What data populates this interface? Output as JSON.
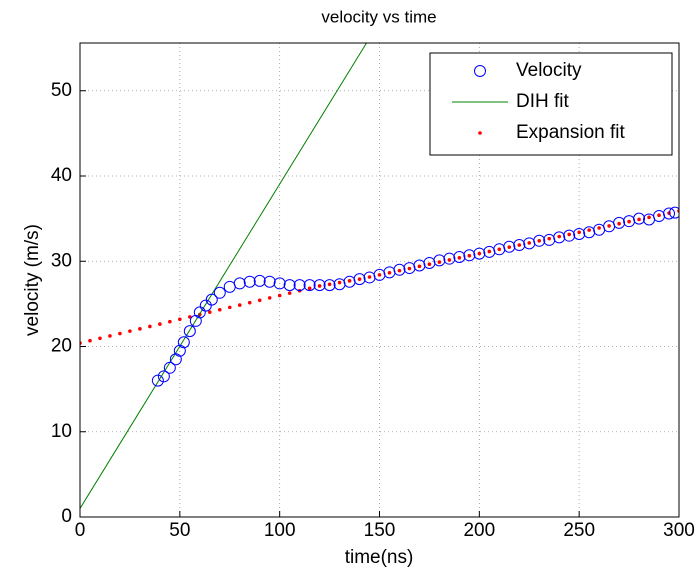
{
  "chart_data": {
    "type": "scatter",
    "title": "velocity vs time",
    "x_label": "time(ns)",
    "y_label": "velocity (m/s)",
    "xlim": [
      0,
      300
    ],
    "ylim": [
      0,
      55.6
    ],
    "xticks": [
      0,
      50,
      100,
      150,
      200,
      250,
      300
    ],
    "yticks": [
      0,
      10,
      20,
      30,
      40,
      50
    ],
    "grid": true,
    "legend": "top-right",
    "series": [
      {
        "name": "Velocity",
        "color": "#0000ff",
        "style": "circle",
        "x": [
          39,
          42,
          45,
          48,
          50,
          52,
          55,
          58,
          60,
          63,
          66,
          70,
          75,
          80,
          85,
          90,
          95,
          100,
          105,
          110,
          115,
          120,
          125,
          130,
          135,
          140,
          145,
          150,
          155,
          160,
          165,
          170,
          175,
          180,
          185,
          190,
          195,
          200,
          205,
          210,
          215,
          220,
          225,
          230,
          235,
          240,
          245,
          250,
          255,
          260,
          265,
          270,
          275,
          280,
          285,
          290,
          295,
          298
        ],
        "values": [
          16,
          16.5,
          17.5,
          18.5,
          19.5,
          20.5,
          21.8,
          23,
          24,
          24.8,
          25.5,
          26.3,
          27,
          27.4,
          27.6,
          27.7,
          27.6,
          27.4,
          27.2,
          27.2,
          27.2,
          27.2,
          27.2,
          27.3,
          27.6,
          27.9,
          28.1,
          28.4,
          28.7,
          29,
          29.2,
          29.5,
          29.8,
          30.1,
          30.3,
          30.5,
          30.7,
          30.9,
          31.1,
          31.4,
          31.7,
          31.9,
          32.1,
          32.4,
          32.5,
          32.8,
          33,
          33.2,
          33.4,
          33.7,
          34.1,
          34.5,
          34.7,
          35,
          34.9,
          35.3,
          35.6,
          35.7
        ]
      },
      {
        "name": "DIH fit",
        "color": "#008000",
        "style": "line",
        "x": [
          0,
          143.5
        ],
        "values": [
          1,
          55.6
        ]
      },
      {
        "name": "Expansion fit",
        "color": "#ff0000",
        "style": "dot",
        "x": [
          0,
          5,
          10,
          15,
          20,
          25,
          30,
          35,
          40,
          45,
          50,
          55,
          60,
          65,
          70,
          75,
          80,
          85,
          90,
          95,
          100,
          105,
          110,
          115,
          120,
          125,
          130,
          135,
          140,
          145,
          150,
          155,
          160,
          165,
          170,
          175,
          180,
          185,
          190,
          195,
          200,
          205,
          210,
          215,
          220,
          225,
          230,
          235,
          240,
          245,
          250,
          255,
          260,
          265,
          270,
          275,
          280,
          285,
          290,
          295,
          300
        ],
        "values": [
          20.4,
          20.68,
          20.96,
          21.24,
          21.52,
          21.8,
          22.07,
          22.35,
          22.63,
          22.91,
          23.19,
          23.47,
          23.75,
          24.03,
          24.31,
          24.59,
          24.86,
          25.14,
          25.42,
          25.7,
          25.98,
          26.26,
          26.54,
          26.82,
          27.1,
          27.3,
          27.5,
          27.7,
          27.9,
          28.15,
          28.4,
          28.65,
          28.9,
          29.15,
          29.4,
          29.65,
          29.9,
          30.15,
          30.4,
          30.65,
          30.9,
          31.15,
          31.4,
          31.65,
          31.9,
          32.15,
          32.4,
          32.65,
          32.9,
          33.15,
          33.4,
          33.65,
          33.9,
          34.15,
          34.4,
          34.65,
          34.9,
          35.15,
          35.4,
          35.65,
          35.9
        ]
      }
    ]
  }
}
